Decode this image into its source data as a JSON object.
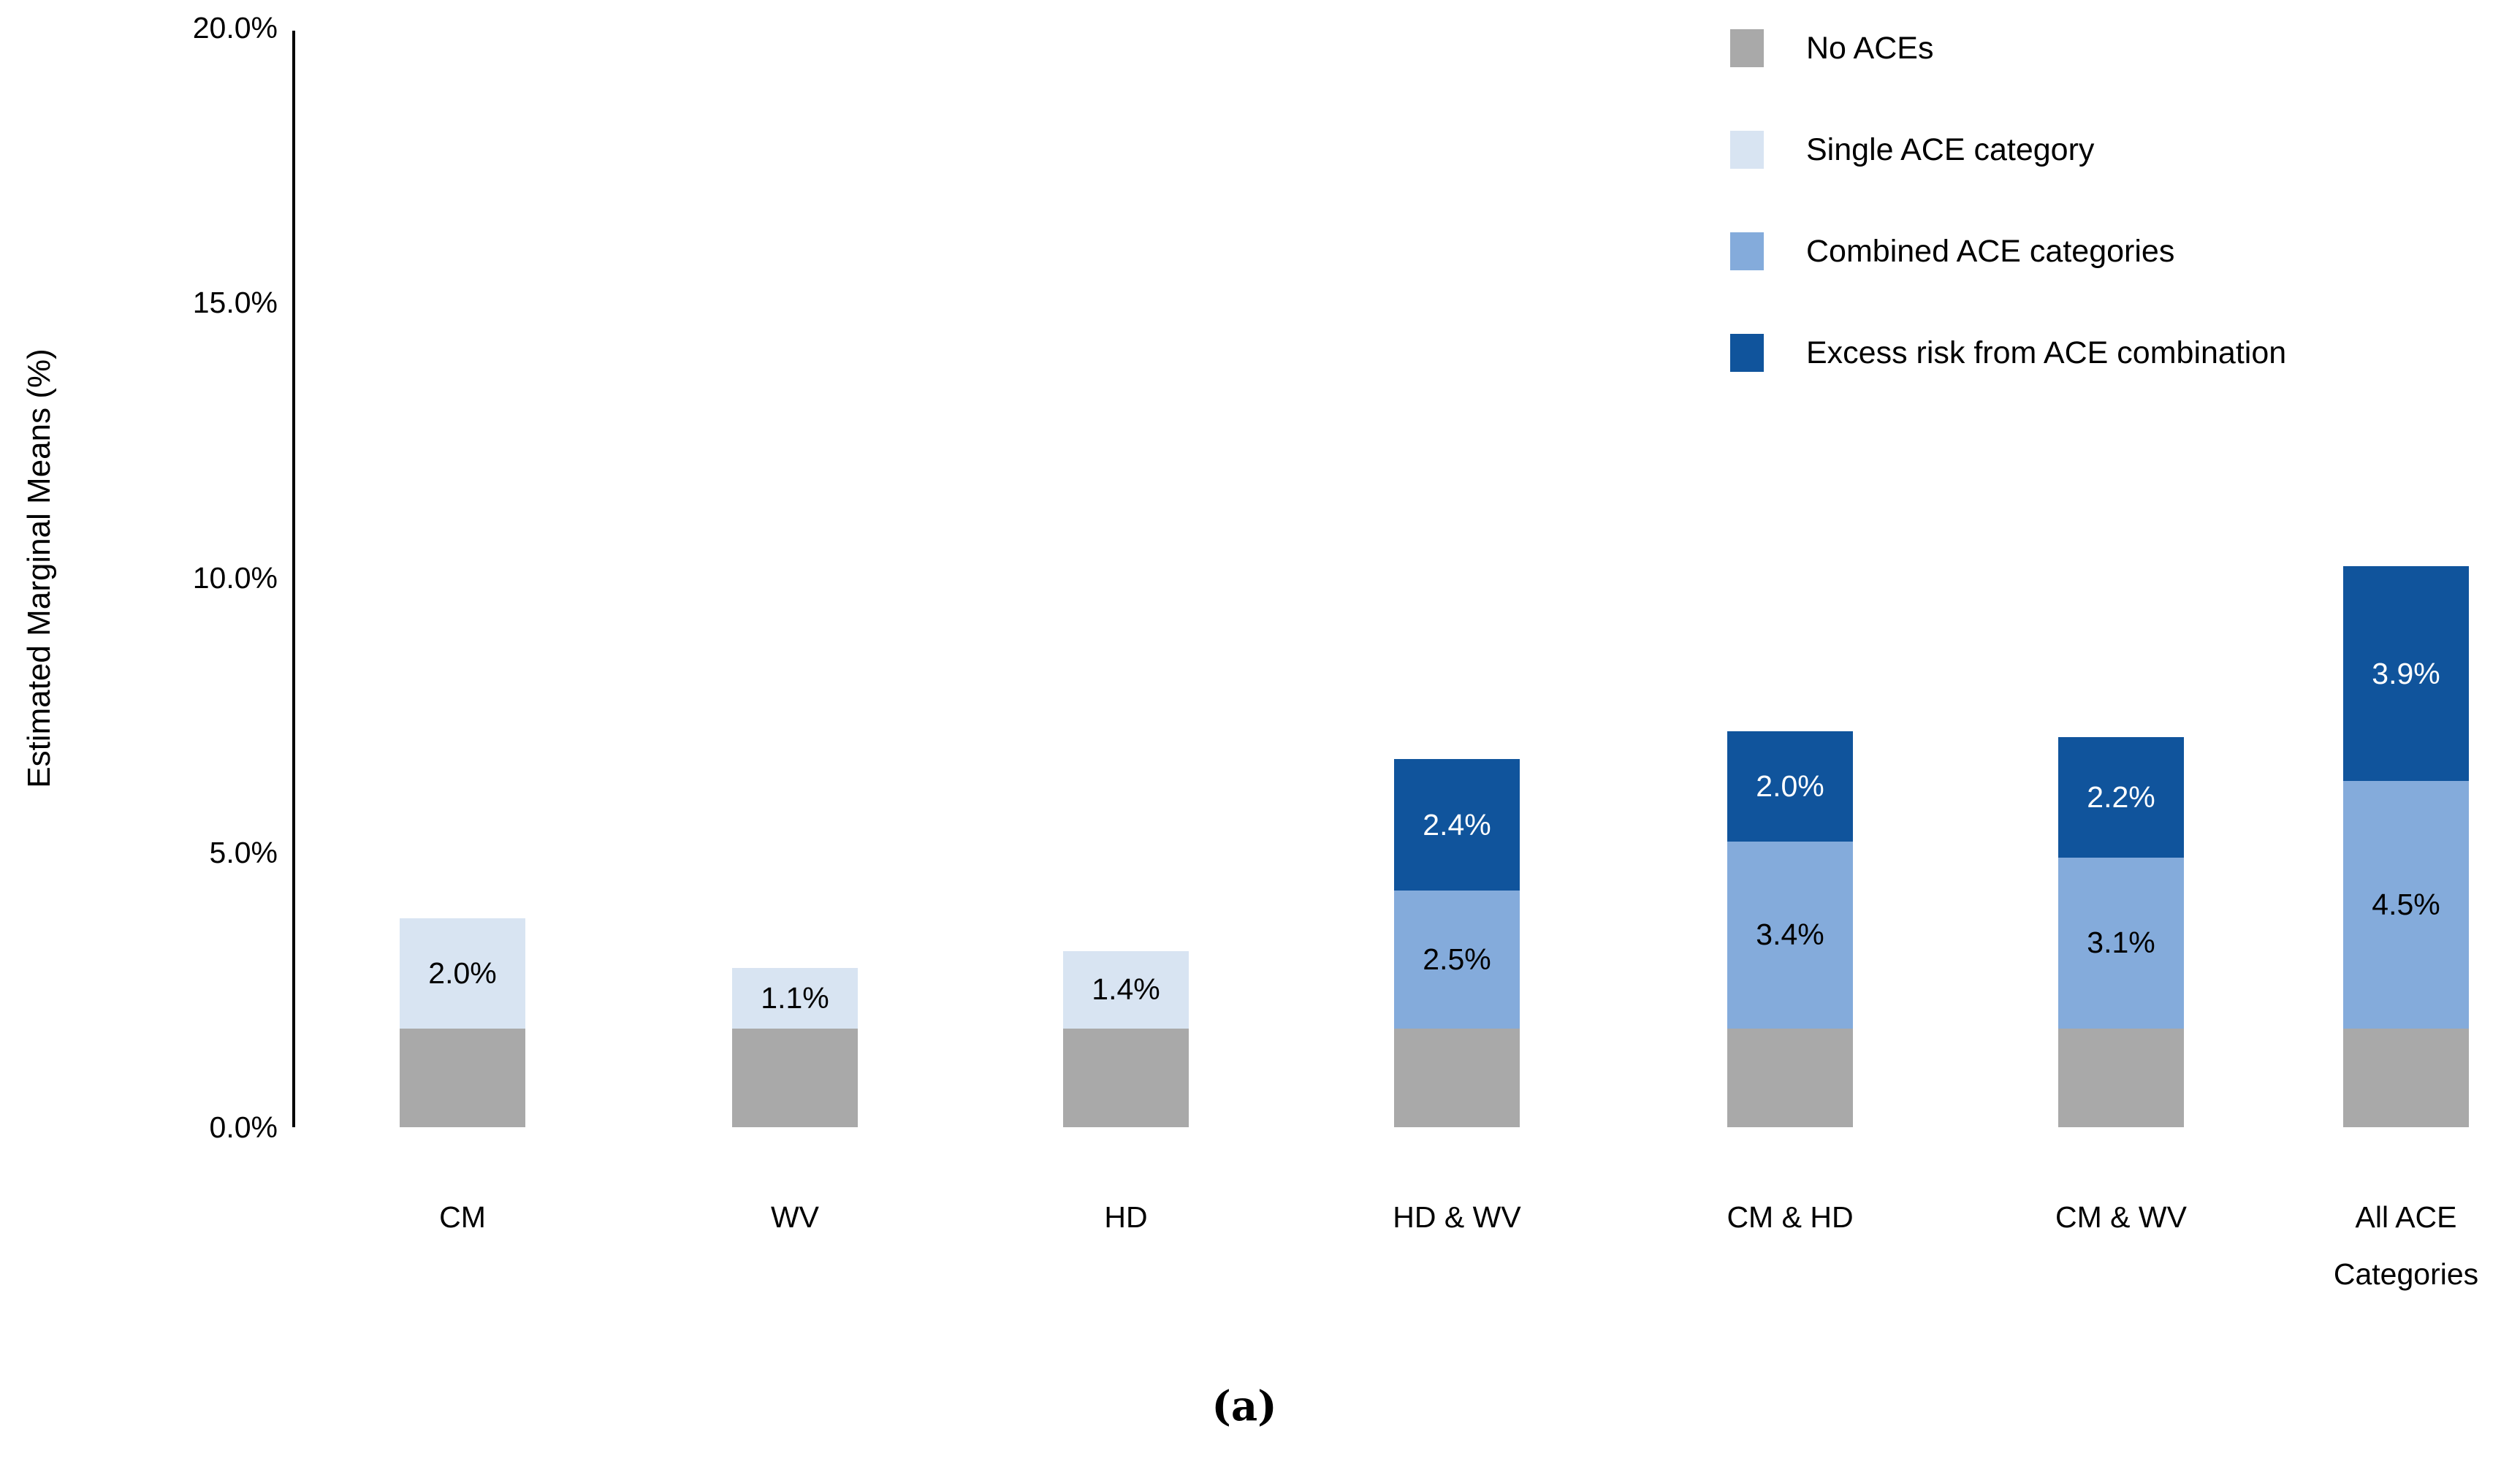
{
  "figure": {
    "caption": "(a)"
  },
  "chart_data": {
    "type": "bar",
    "subtype": "stacked-vertical",
    "title": "",
    "xlabel": "",
    "ylabel": "Estimated Marginal Means (%)",
    "ylim": [
      0,
      20
    ],
    "grid": false,
    "legend_position": "top-right",
    "yticks": [
      "0.0%",
      "5.0%",
      "10.0%",
      "15.0%",
      "20.0%"
    ],
    "ytick_values": [
      0,
      5,
      10,
      15,
      20
    ],
    "categories": [
      "CM",
      "WV",
      "HD",
      "HD & WV",
      "CM & HD",
      "CM & WV",
      "All ACE Categories"
    ],
    "series": [
      {
        "name": "No ACEs",
        "color": "#a9a9a9",
        "label_color": "#000000",
        "values": [
          1.8,
          1.8,
          1.8,
          1.8,
          1.8,
          1.8,
          1.8
        ],
        "labels": [
          "",
          "",
          "",
          "",
          "",
          "",
          ""
        ]
      },
      {
        "name": "Single ACE category",
        "color": "#d8e4f2",
        "label_color": "#000000",
        "values": [
          2.0,
          1.1,
          1.4,
          0,
          0,
          0,
          0
        ],
        "labels": [
          "2.0%",
          "1.1%",
          "1.4%",
          "",
          "",
          "",
          ""
        ]
      },
      {
        "name": "Combined ACE categories",
        "color": "#84abdb",
        "label_color": "#000000",
        "values": [
          0,
          0,
          0,
          2.5,
          3.4,
          3.1,
          4.5
        ],
        "labels": [
          "",
          "",
          "",
          "2.5%",
          "3.4%",
          "3.1%",
          "4.5%"
        ]
      },
      {
        "name": "Excess risk from ACE combination",
        "color": "#10549c",
        "label_color": "#ffffff",
        "values": [
          0,
          0,
          0,
          2.4,
          2.0,
          2.2,
          3.9
        ],
        "labels": [
          "",
          "",
          "",
          "2.4%",
          "2.0%",
          "2.2%",
          "3.9%"
        ]
      }
    ]
  }
}
